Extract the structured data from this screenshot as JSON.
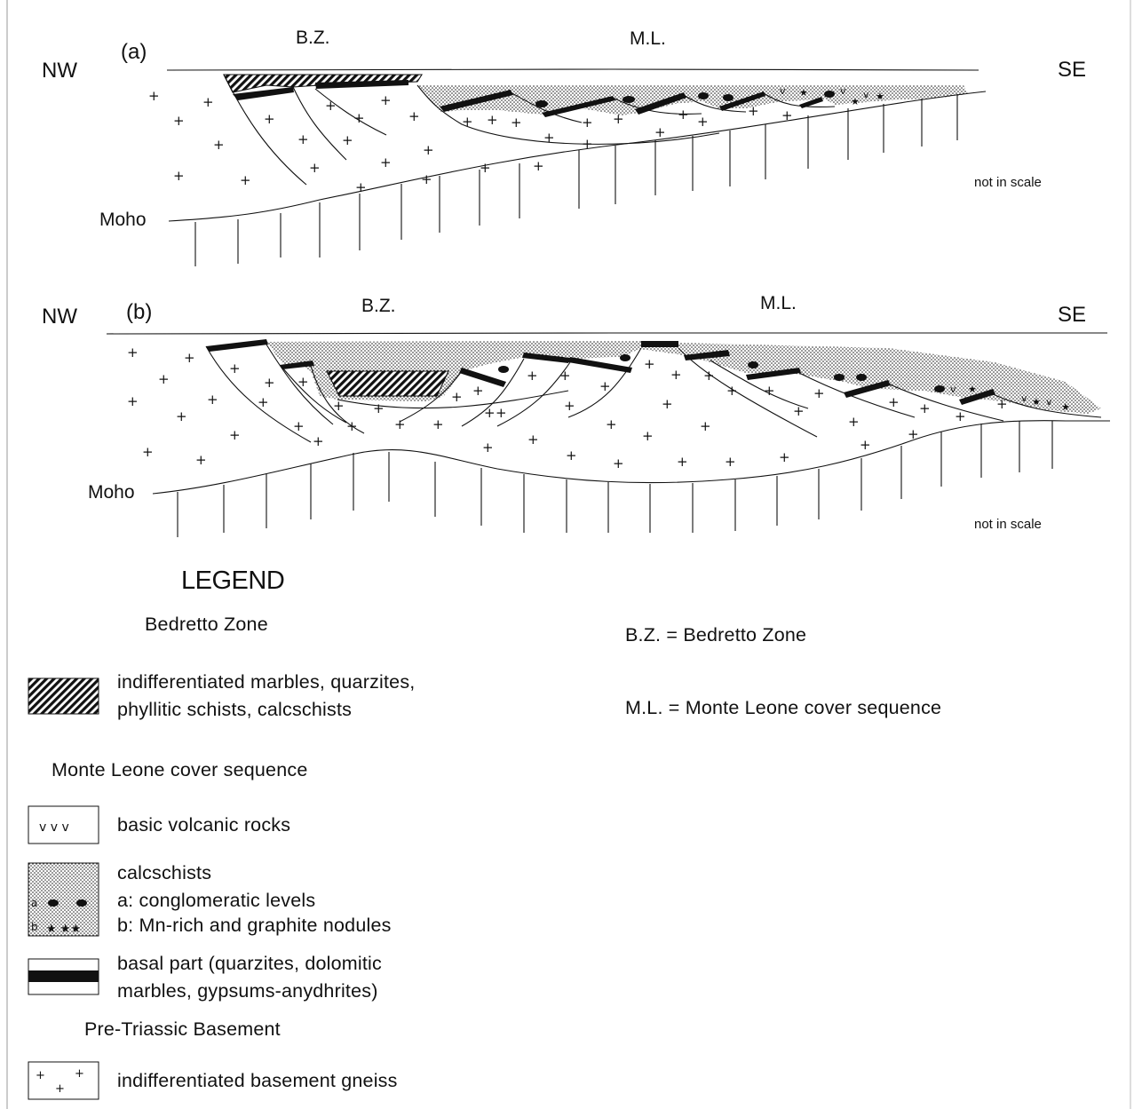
{
  "section_a": {
    "label": "(a)",
    "left": "NW",
    "right": "SE",
    "bz": "B.Z.",
    "ml": "M.L.",
    "moho": "Moho",
    "scale_note": "not in scale"
  },
  "section_b": {
    "label": "(b)",
    "left": "NW",
    "right": "SE",
    "bz": "B.Z.",
    "ml": "M.L.",
    "moho": "Moho",
    "scale_note": "not in scale"
  },
  "legend": {
    "title": "LEGEND",
    "bedretto_heading": "Bedretto Zone",
    "bedretto_item_line1": "indifferentiated marbles, quarzites,",
    "bedretto_item_line2": "phyllitic schists, calcschists",
    "ml_heading": "Monte Leone cover sequence",
    "volcanic": "basic volcanic rocks",
    "volcanic_symbol": "v v v",
    "calc_title": "calcschists",
    "calc_a": "a: conglomeratic levels",
    "calc_b": "b: Mn-rich and graphite nodules",
    "swatch_a": "a",
    "swatch_b": "b",
    "basal_line1": "basal part (quarzites, dolomitic",
    "basal_line2": "marbles, gypsums-anydhrites)",
    "basement_heading": "Pre-Triassic Basement",
    "gneiss": "indifferentiated basement gneiss",
    "abbr_bz": "B.Z. = Bedretto Zone",
    "abbr_ml": "M.L. = Monte Leone cover sequence"
  },
  "colors": {
    "ink": "#111111",
    "paper": "#ffffff"
  }
}
